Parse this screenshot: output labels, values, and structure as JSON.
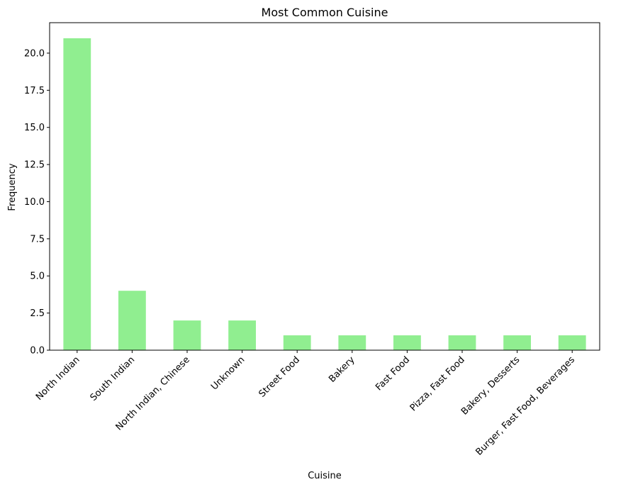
{
  "chart_data": {
    "type": "bar",
    "title": "Most Common Cuisine",
    "xlabel": "Cuisine",
    "ylabel": "Frequency",
    "categories": [
      "North Indian",
      "South Indian",
      "North Indian, Chinese",
      "Unknown",
      "Street Food",
      "Bakery",
      "Fast Food",
      "Pizza, Fast Food",
      "Bakery, Desserts",
      "Burger, Fast Food, Beverages"
    ],
    "values": [
      21,
      4,
      2,
      2,
      1,
      1,
      1,
      1,
      1,
      1
    ],
    "ylim": [
      0,
      22.05
    ],
    "yticks": [
      "0.0",
      "2.5",
      "5.0",
      "7.5",
      "10.0",
      "12.5",
      "15.0",
      "17.5",
      "20.0"
    ],
    "grid": false,
    "bar_color": "#90ee90"
  }
}
